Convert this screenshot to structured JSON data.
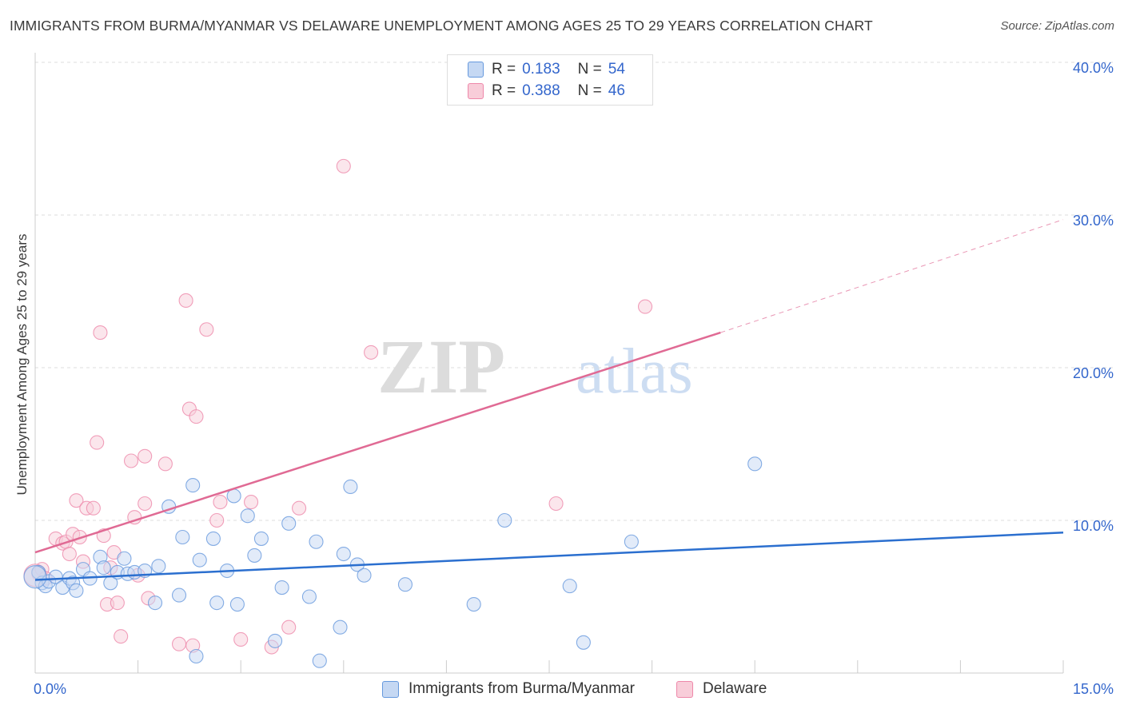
{
  "chart_data": {
    "type": "scatter",
    "title": "IMMIGRANTS FROM BURMA/MYANMAR VS DELAWARE UNEMPLOYMENT AMONG AGES 25 TO 29 YEARS CORRELATION CHART",
    "source": "Source: ZipAtlas.com",
    "xlabel": "",
    "ylabel": "Unemployment Among Ages 25 to 29 years",
    "xlim": [
      0,
      15
    ],
    "ylim": [
      0,
      40
    ],
    "x_tick_labels": [
      "0.0%",
      "15.0%"
    ],
    "y_ticks": [
      10,
      20,
      30,
      40
    ],
    "y_tick_labels": [
      "10.0%",
      "20.0%",
      "30.0%",
      "40.0%"
    ],
    "watermark": {
      "zip": "ZIP",
      "atlas": "atlas"
    },
    "legend": [
      {
        "r_label": "R =",
        "r": "0.183",
        "n_label": "N =",
        "n": "54"
      },
      {
        "r_label": "R =",
        "r": "0.388",
        "n_label": "N =",
        "n": "46"
      }
    ],
    "series": [
      {
        "name": "Immigrants from Burma/Myanmar",
        "color": "#6699dd",
        "fill": "#c5d8f3",
        "trend_color": "#2b6fcf",
        "trend": {
          "x0": 0,
          "y0": 6.1,
          "x1": 15,
          "y1": 9.2
        },
        "points": [
          [
            0.05,
            6.6
          ],
          [
            0.1,
            5.9
          ],
          [
            0.15,
            5.7
          ],
          [
            0.2,
            6.0
          ],
          [
            0.3,
            6.3
          ],
          [
            0.4,
            5.6
          ],
          [
            0.5,
            6.2
          ],
          [
            0.55,
            5.9
          ],
          [
            0.6,
            5.4
          ],
          [
            0.7,
            6.8
          ],
          [
            0.8,
            6.2
          ],
          [
            0.95,
            7.6
          ],
          [
            1.0,
            6.9
          ],
          [
            1.1,
            5.9
          ],
          [
            1.2,
            6.6
          ],
          [
            1.3,
            7.5
          ],
          [
            1.35,
            6.5
          ],
          [
            1.45,
            6.6
          ],
          [
            1.6,
            6.7
          ],
          [
            1.75,
            4.6
          ],
          [
            1.8,
            7.0
          ],
          [
            1.95,
            10.9
          ],
          [
            2.1,
            5.1
          ],
          [
            2.15,
            8.9
          ],
          [
            2.3,
            12.3
          ],
          [
            2.35,
            1.1
          ],
          [
            2.4,
            7.4
          ],
          [
            2.6,
            8.8
          ],
          [
            2.65,
            4.6
          ],
          [
            2.8,
            6.7
          ],
          [
            2.9,
            11.6
          ],
          [
            2.95,
            4.5
          ],
          [
            3.1,
            10.3
          ],
          [
            3.2,
            7.7
          ],
          [
            3.3,
            8.8
          ],
          [
            3.5,
            2.1
          ],
          [
            3.6,
            5.6
          ],
          [
            3.7,
            9.8
          ],
          [
            4.0,
            5.0
          ],
          [
            4.1,
            8.6
          ],
          [
            4.15,
            0.8
          ],
          [
            4.45,
            3.0
          ],
          [
            4.5,
            7.8
          ],
          [
            4.6,
            12.2
          ],
          [
            4.7,
            7.1
          ],
          [
            4.8,
            6.4
          ],
          [
            5.4,
            5.8
          ],
          [
            6.4,
            4.5
          ],
          [
            6.85,
            10.0
          ],
          [
            7.8,
            5.7
          ],
          [
            8.0,
            2.0
          ],
          [
            8.7,
            8.6
          ],
          [
            10.5,
            13.7
          ],
          [
            0.0,
            6.3
          ]
        ]
      },
      {
        "name": "Delaware",
        "color": "#ee88aa",
        "fill": "#f8cdd9",
        "trend_color": "#e06a94",
        "trend": {
          "x0": 0,
          "y0": 7.9,
          "x1": 10.0,
          "y1": 22.3,
          "dash_x1": 15,
          "dash_y1": 29.7
        },
        "points": [
          [
            0.05,
            6.5
          ],
          [
            0.1,
            6.8
          ],
          [
            0.15,
            6.2
          ],
          [
            0.3,
            8.8
          ],
          [
            0.4,
            8.5
          ],
          [
            0.45,
            8.6
          ],
          [
            0.5,
            7.8
          ],
          [
            0.55,
            9.1
          ],
          [
            0.6,
            11.3
          ],
          [
            0.65,
            8.9
          ],
          [
            0.7,
            7.3
          ],
          [
            0.75,
            10.8
          ],
          [
            0.85,
            10.8
          ],
          [
            0.9,
            15.1
          ],
          [
            0.95,
            22.3
          ],
          [
            1.0,
            9.0
          ],
          [
            1.05,
            4.5
          ],
          [
            1.1,
            6.9
          ],
          [
            1.15,
            7.9
          ],
          [
            1.2,
            4.6
          ],
          [
            1.25,
            2.4
          ],
          [
            1.4,
            13.9
          ],
          [
            1.45,
            10.2
          ],
          [
            1.5,
            6.4
          ],
          [
            1.6,
            14.2
          ],
          [
            1.6,
            11.1
          ],
          [
            1.65,
            4.9
          ],
          [
            1.9,
            13.7
          ],
          [
            2.1,
            1.9
          ],
          [
            2.2,
            24.4
          ],
          [
            2.25,
            17.3
          ],
          [
            2.3,
            1.8
          ],
          [
            2.35,
            16.8
          ],
          [
            2.5,
            22.5
          ],
          [
            2.65,
            10.0
          ],
          [
            2.7,
            11.2
          ],
          [
            3.0,
            2.2
          ],
          [
            3.15,
            11.2
          ],
          [
            3.45,
            1.7
          ],
          [
            3.7,
            3.0
          ],
          [
            3.85,
            10.8
          ],
          [
            4.5,
            33.2
          ],
          [
            4.9,
            21.0
          ],
          [
            7.6,
            11.1
          ],
          [
            8.9,
            24.0
          ],
          [
            0.0,
            6.4
          ]
        ]
      }
    ]
  }
}
